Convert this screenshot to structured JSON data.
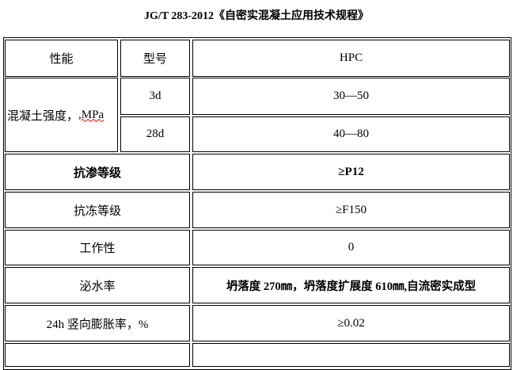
{
  "title": "JG/T 283-2012《自密实混凝土应用技术规程》",
  "header": {
    "property": "性能",
    "model": "型号",
    "value": "HPC"
  },
  "strength": {
    "label_prefix": "混凝土强度，",
    "label_unit": ",MPa",
    "rows": [
      {
        "age": "3d",
        "value": "30—50"
      },
      {
        "age": "28d",
        "value": "40—80"
      }
    ]
  },
  "rows": [
    {
      "label": "抗渗等级",
      "value": "≥P12",
      "bold": true
    },
    {
      "label": "抗冻等级",
      "value": "≥F150"
    },
    {
      "label": "工作性",
      "value": "0"
    },
    {
      "label": "泌水率",
      "value": "坍落度 270㎜，坍落度扩展度 610㎜,自流密实成型",
      "bold_value": true
    },
    {
      "label": "24h 竖向膨胀率，%",
      "value": "≥0.02"
    }
  ]
}
